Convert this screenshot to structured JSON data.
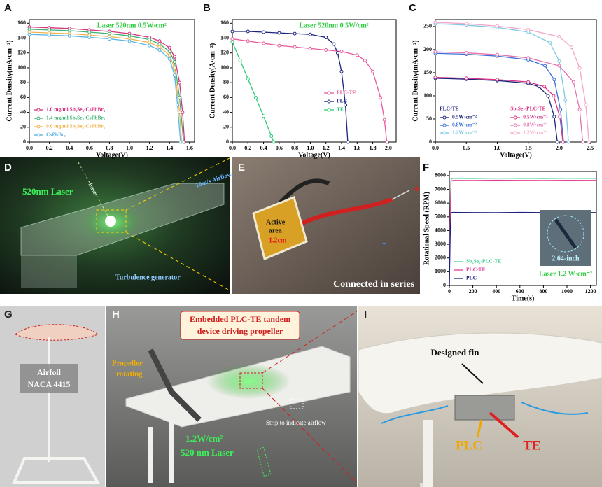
{
  "chart_data": [
    {
      "type": "line",
      "panel": "A",
      "xlabel": "Voltage(V)",
      "ylabel": "Current Density(mA·cm⁻²)",
      "annotation": "Laser 520nm 0.5W/cm²",
      "xlim": [
        0,
        1.65
      ],
      "ylim": [
        0,
        165
      ],
      "xticks": [
        {
          "value": 0,
          "label": "0.0"
        },
        0.2,
        0.4,
        0.6,
        0.8,
        {
          "value": 1,
          "label": "1.0"
        },
        1.2,
        1.4,
        1.6
      ],
      "yticks": [
        0,
        20,
        40,
        60,
        80,
        100,
        120,
        140,
        160
      ],
      "legend": "lower left",
      "markers": true,
      "series": [
        {
          "name": "1.0 mg/ml Sb₂Se₃-CsPbBr₃",
          "color": "#d6317e",
          "x": [
            0,
            0.2,
            0.4,
            0.6,
            0.8,
            1.0,
            1.2,
            1.3,
            1.4,
            1.45,
            1.5,
            1.53,
            1.55
          ],
          "values": [
            155,
            154,
            153,
            151,
            149,
            146,
            141,
            136,
            127,
            115,
            80,
            40,
            0
          ]
        },
        {
          "name": "1.4 mg/ml Sb₂Se₃-CsPbBr₃",
          "color": "#3cb371",
          "x": [
            0,
            0.2,
            0.4,
            0.6,
            0.8,
            1.0,
            1.2,
            1.3,
            1.4,
            1.45,
            1.5,
            1.54
          ],
          "values": [
            152,
            151,
            150,
            148,
            146,
            143,
            138,
            132,
            122,
            108,
            60,
            0
          ]
        },
        {
          "name": "0.6 mg/ml Sb₂Se₃-CsPbBr₃",
          "color": "#f0b34a",
          "x": [
            0,
            0.2,
            0.4,
            0.6,
            0.8,
            1.0,
            1.2,
            1.3,
            1.4,
            1.45,
            1.5,
            1.52
          ],
          "values": [
            148,
            147,
            146,
            144,
            142,
            139,
            134,
            128,
            117,
            100,
            40,
            0
          ]
        },
        {
          "name": "CsPbBr₃",
          "color": "#5bb5e6",
          "x": [
            0,
            0.2,
            0.4,
            0.6,
            0.8,
            1.0,
            1.2,
            1.3,
            1.4,
            1.45,
            1.48,
            1.51
          ],
          "values": [
            145,
            144,
            143,
            141,
            139,
            136,
            130,
            124,
            112,
            90,
            50,
            0
          ]
        }
      ]
    },
    {
      "type": "line",
      "panel": "B",
      "xlabel": "Voltage(V)",
      "ylabel": "Current Density(A·cm⁻²)",
      "annotation": "Laser 520nm 0.5W/cm²",
      "xlim": [
        0,
        2.1
      ],
      "ylim": [
        0,
        165
      ],
      "xticks": [
        {
          "value": 0,
          "label": "0.0"
        },
        0.2,
        0.4,
        0.6,
        0.8,
        {
          "value": 1,
          "label": "1.0"
        },
        1.2,
        1.4,
        1.6,
        1.8,
        {
          "value": 2,
          "label": "2.0"
        }
      ],
      "yticks": [
        0,
        20,
        40,
        60,
        80,
        100,
        120,
        140,
        160
      ],
      "legend": "center right",
      "markers": true,
      "series": [
        {
          "name": "PLC-TE",
          "color": "#e75a9c",
          "x": [
            0,
            0.2,
            0.4,
            0.6,
            0.8,
            1.0,
            1.2,
            1.4,
            1.6,
            1.7,
            1.8,
            1.9,
            1.95,
            1.98
          ],
          "values": [
            139,
            136,
            133,
            130,
            128,
            126,
            124,
            122,
            117,
            110,
            95,
            60,
            30,
            0
          ]
        },
        {
          "name": "PLC",
          "color": "#1a237e",
          "x": [
            0,
            0.2,
            0.4,
            0.6,
            0.8,
            1.0,
            1.2,
            1.3,
            1.35,
            1.4,
            1.45,
            1.48
          ],
          "values": [
            149,
            149,
            148,
            147,
            146,
            145,
            141,
            132,
            120,
            95,
            50,
            0
          ]
        },
        {
          "name": "TE",
          "color": "#2ecc71",
          "x": [
            0,
            0.1,
            0.2,
            0.3,
            0.4,
            0.5,
            0.53
          ],
          "values": [
            135,
            110,
            85,
            60,
            35,
            8,
            0
          ]
        }
      ]
    },
    {
      "type": "line",
      "panel": "C",
      "xlabel": "Voltage(V)",
      "ylabel": "Current Density(mA·cm⁻²)",
      "xlim": [
        0,
        2.6
      ],
      "ylim": [
        0,
        265
      ],
      "xticks": [
        {
          "value": 0,
          "label": "0.0"
        },
        0.5,
        {
          "value": 1,
          "label": "1.0"
        },
        1.5,
        {
          "value": 2,
          "label": "2.0"
        },
        2.5
      ],
      "yticks": [
        0,
        50,
        100,
        150,
        200,
        250
      ],
      "legend": "lower left",
      "markers": true,
      "series_groups": [
        {
          "name": "PLC-TE",
          "series": [
            {
              "name": "0.5W·cm⁻²",
              "color": "#1a237e",
              "x": [
                0,
                0.5,
                1.0,
                1.5,
                1.67,
                1.82,
                1.92,
                1.97
              ],
              "values": [
                138,
                136,
                133,
                127,
                120,
                100,
                55,
                0
              ]
            },
            {
              "name": "0.8W·cm⁻²",
              "color": "#3b6fd6",
              "x": [
                0,
                0.5,
                1.0,
                1.5,
                1.77,
                1.92,
                2.02,
                2.07
              ],
              "values": [
                192,
                190,
                186,
                178,
                165,
                135,
                70,
                0
              ]
            },
            {
              "name": "1.2W·cm⁻²",
              "color": "#7ec8e3",
              "x": [
                0,
                0.5,
                1.0,
                1.5,
                1.85,
                2.0,
                2.1,
                2.15
              ],
              "values": [
                256,
                253,
                248,
                238,
                215,
                175,
                90,
                0
              ]
            }
          ]
        },
        {
          "name": "Sb₂Se₃-PLC-TE",
          "series": [
            {
              "name": "0.5W·cm⁻²",
              "color": "#d63384",
              "x": [
                0,
                0.5,
                1.0,
                1.5,
                1.76,
                1.91,
                2.01,
                2.06
              ],
              "values": [
                140,
                138,
                135,
                130,
                120,
                100,
                55,
                0
              ]
            },
            {
              "name": "0.8W·cm⁻²",
              "color": "#e573b0",
              "x": [
                0,
                0.5,
                1.0,
                1.5,
                2.0,
                2.23,
                2.33,
                2.38
              ],
              "values": [
                195,
                193,
                189,
                182,
                165,
                130,
                70,
                0
              ]
            },
            {
              "name": "1.2W·cm⁻²",
              "color": "#f4a6c8",
              "x": [
                0,
                0.5,
                1.0,
                1.5,
                2.0,
                2.2,
                2.33,
                2.43,
                2.48
              ],
              "values": [
                259,
                256,
                251,
                243,
                228,
                205,
                160,
                80,
                0
              ]
            }
          ]
        }
      ]
    },
    {
      "type": "line",
      "panel": "F",
      "xlabel": "Time(s)",
      "ylabel": "Rotational Speed (RPM)",
      "xlim": [
        0,
        1250
      ],
      "ylim": [
        0,
        8300
      ],
      "xticks": [
        0,
        200,
        400,
        600,
        800,
        1000,
        1200
      ],
      "yticks": [
        0,
        1000,
        2000,
        3000,
        4000,
        5000,
        6000,
        7000,
        8000
      ],
      "legend": "lower left",
      "markers": false,
      "inset": {
        "label": "2.64-inch",
        "caption": "Laser 1.2 W·cm⁻²"
      },
      "series": [
        {
          "name": "Sb₂Se₃-PLC-TE",
          "color": "#3ecf8e",
          "x": [
            0,
            8,
            15,
            30,
            200,
            400,
            600,
            800,
            1000,
            1250
          ],
          "values": [
            0,
            6000,
            7750,
            7800,
            7790,
            7810,
            7800,
            7795,
            7805,
            7800
          ]
        },
        {
          "name": "PLC-TE",
          "color": "#e0409a",
          "x": [
            0,
            8,
            15,
            30,
            200,
            400,
            600,
            800,
            1000,
            1250
          ],
          "values": [
            0,
            5500,
            7600,
            7650,
            7640,
            7660,
            7650,
            7645,
            7655,
            7650
          ]
        },
        {
          "name": "PLC",
          "color": "#1a237e",
          "x": [
            0,
            8,
            15,
            30,
            200,
            400,
            600,
            800,
            1000,
            1250
          ],
          "values": [
            0,
            4000,
            5300,
            5320,
            5310,
            5300,
            5320,
            5310,
            5300,
            5310
          ]
        }
      ]
    }
  ],
  "photos": [
    {
      "panel": "D",
      "texts": [
        "520nm Laser",
        "Laser",
        "10m/s Airflow",
        "Turbulence generator"
      ]
    },
    {
      "panel": "E",
      "texts": [
        "Active",
        "area",
        "1.2cm",
        "+",
        "-",
        "Connected in series"
      ]
    },
    {
      "panel": "G",
      "texts": [
        "Airfoil",
        "NACA 4415"
      ]
    },
    {
      "panel": "H",
      "texts": [
        "Embedded PLC-TE tandem",
        "device driving propeller",
        "Propeller",
        "rotating",
        "Strip to indicate airflow",
        "1.2W/cm²",
        "520 nm Laser"
      ]
    },
    {
      "panel": "I",
      "texts": [
        "Designed fin",
        "PLC",
        "TE"
      ]
    }
  ]
}
